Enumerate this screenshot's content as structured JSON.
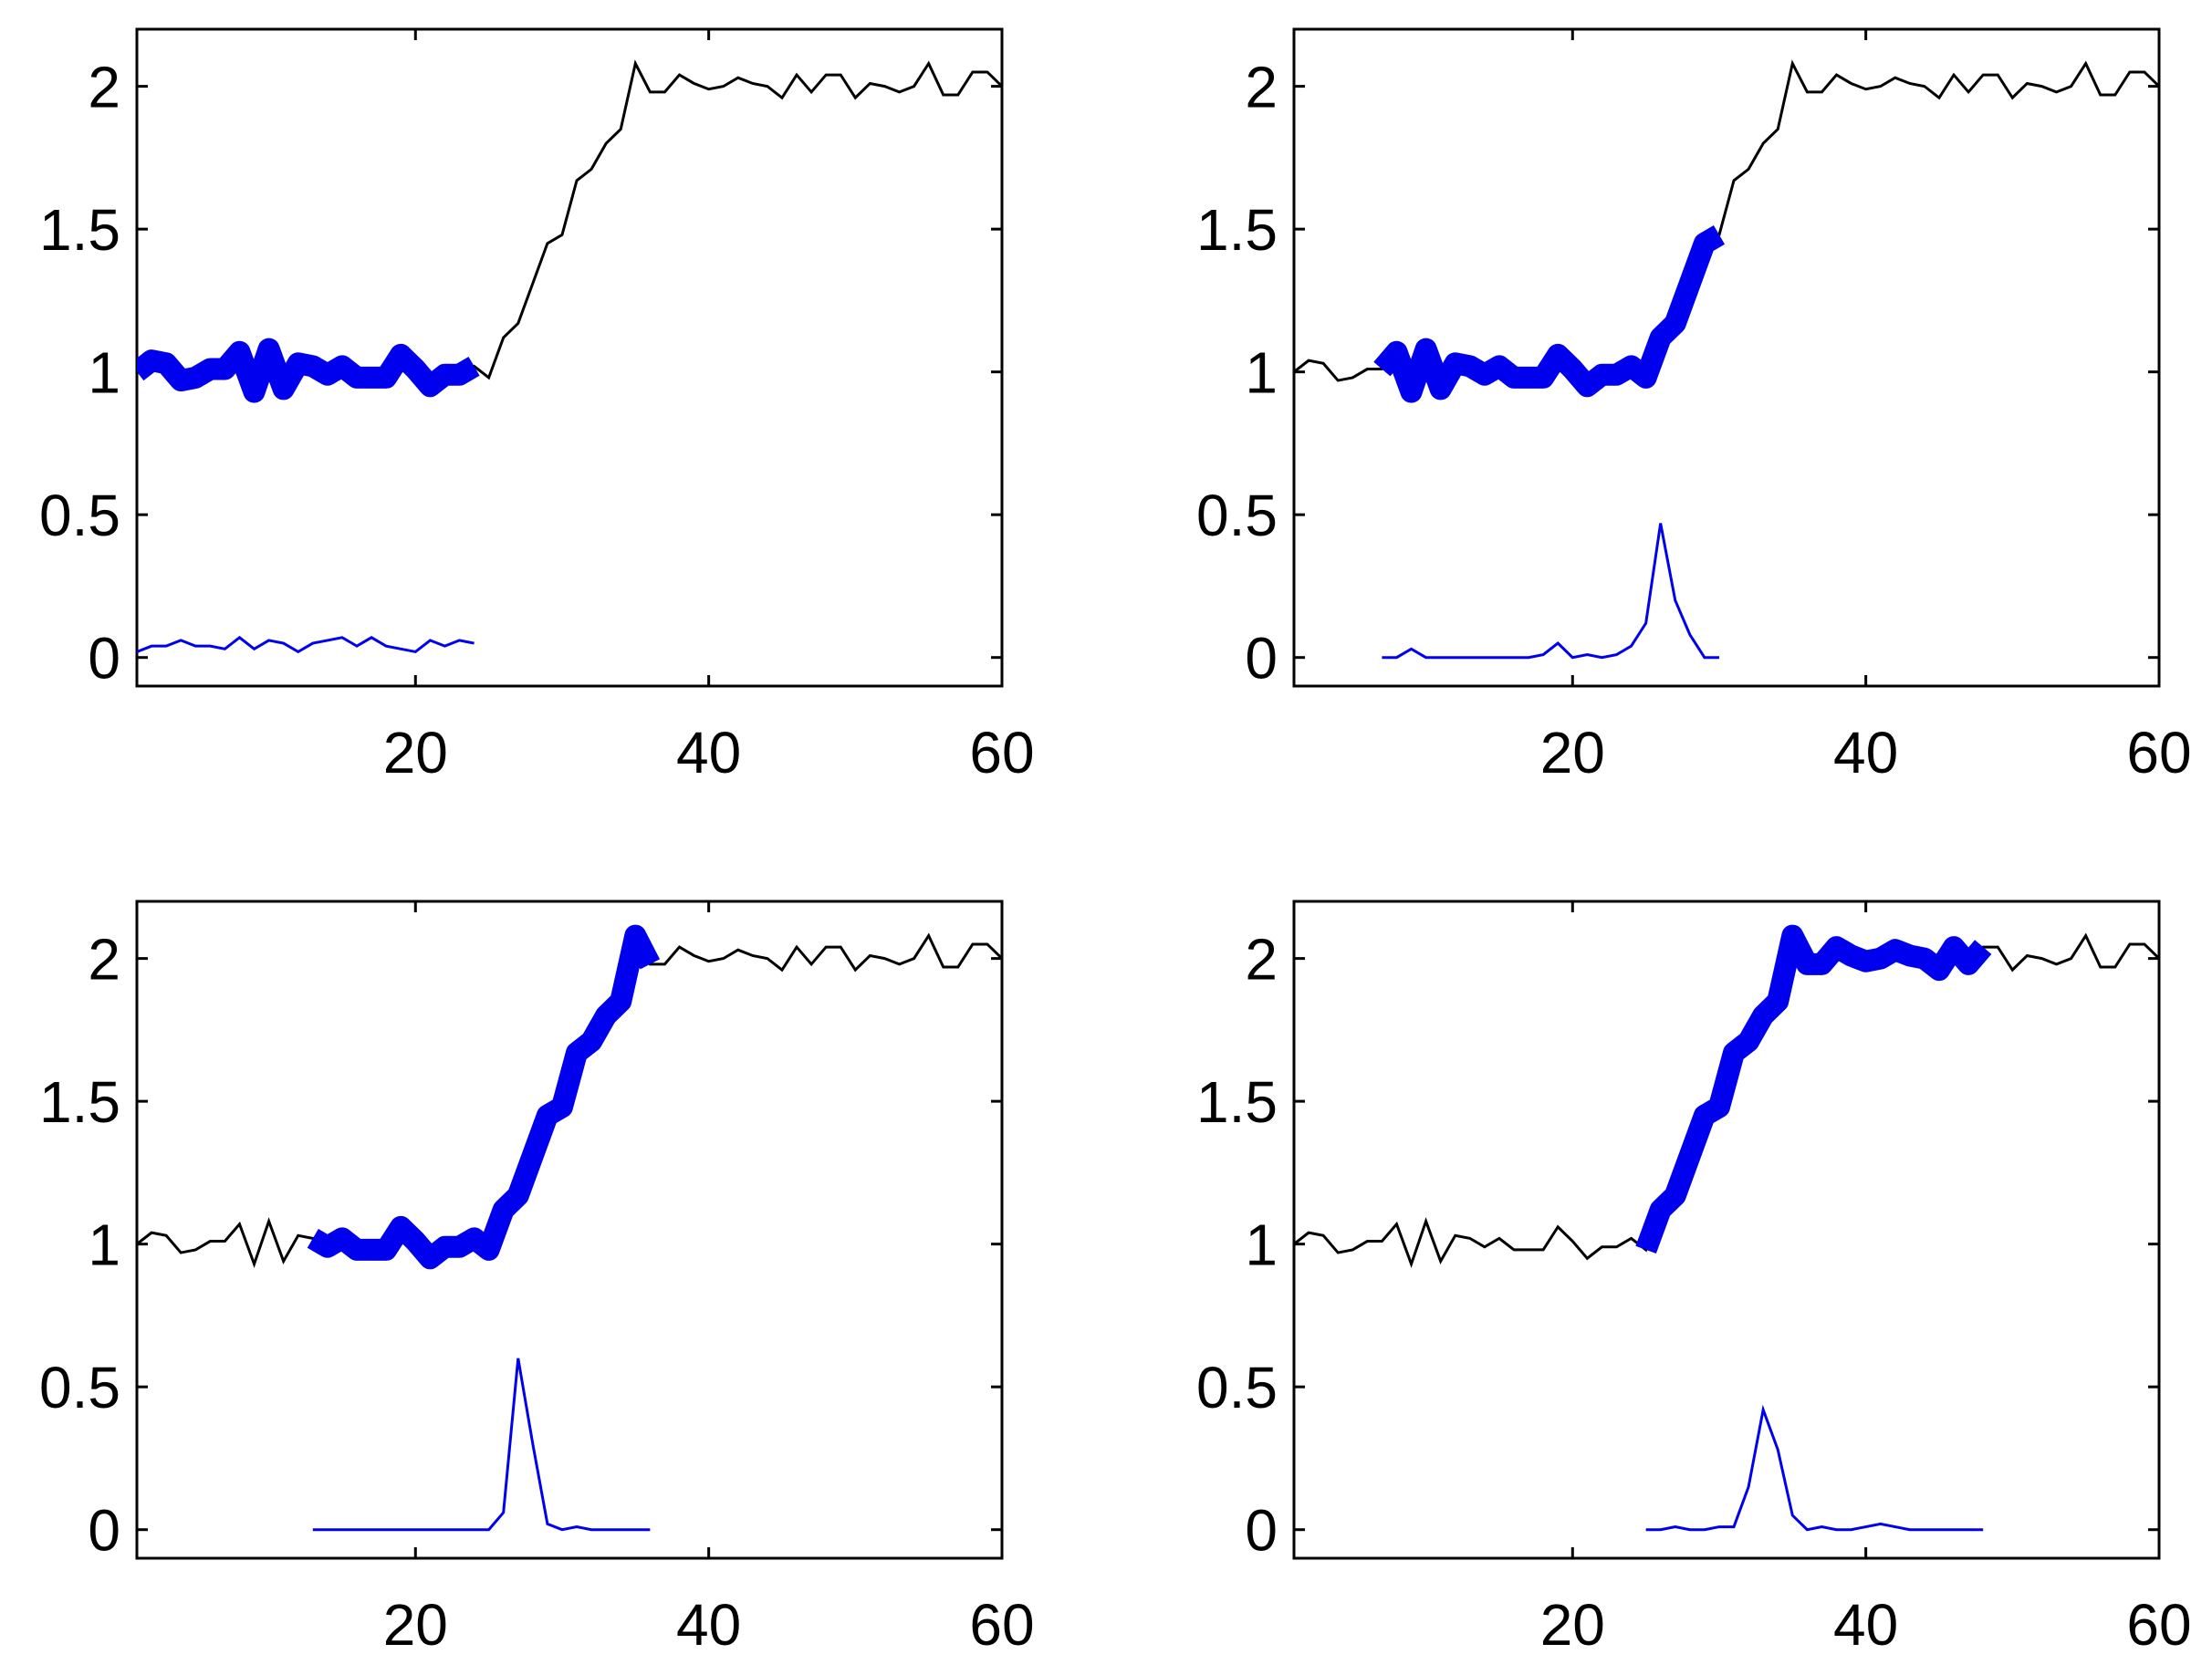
{
  "colors": {
    "signal": "#000000",
    "highlight": "#0000ee",
    "detector": "#0000ee",
    "axes": "#000000",
    "background": "#ffffff"
  },
  "chart_data": [
    {
      "type": "line",
      "title": "",
      "xlabel": "",
      "ylabel": "",
      "xlim": [
        1,
        60
      ],
      "ylim": [
        -0.1,
        2.2
      ],
      "xticks": [
        20,
        40,
        60
      ],
      "yticks": [
        0,
        0.5,
        1,
        1.5,
        2
      ],
      "xtick_labels": [
        "20",
        "40",
        "60"
      ],
      "ytick_labels": [
        "0",
        "0.5",
        "1",
        "1.5",
        "2"
      ],
      "grid": false,
      "highlight_range": [
        1,
        24
      ],
      "signal": {
        "x": [
          1,
          2,
          3,
          4,
          5,
          6,
          7,
          8,
          9,
          10,
          11,
          12,
          13,
          14,
          15,
          16,
          17,
          18,
          19,
          20,
          21,
          22,
          23,
          24,
          25,
          26,
          27,
          28,
          29,
          30,
          31,
          32,
          33,
          34,
          35,
          36,
          37,
          38,
          39,
          40,
          41,
          42,
          43,
          44,
          45,
          46,
          47,
          48,
          49,
          50,
          51,
          52,
          53,
          54,
          55,
          56,
          57,
          58,
          59,
          60
        ],
        "y": [
          1.0,
          1.04,
          1.03,
          0.97,
          0.98,
          1.01,
          1.01,
          1.07,
          0.93,
          1.08,
          0.94,
          1.03,
          1.02,
          0.99,
          1.02,
          0.98,
          0.98,
          0.98,
          1.06,
          1.01,
          0.95,
          0.99,
          0.99,
          1.02,
          0.98,
          1.12,
          1.17,
          1.31,
          1.45,
          1.48,
          1.67,
          1.71,
          1.8,
          1.85,
          2.08,
          1.98,
          1.98,
          2.04,
          2.01,
          1.99,
          2.0,
          2.03,
          2.01,
          2.0,
          1.96,
          2.04,
          1.98,
          2.04,
          2.04,
          1.96,
          2.01,
          2.0,
          1.98,
          2.0,
          2.08,
          1.97,
          1.97,
          2.05,
          2.05,
          2.0
        ]
      },
      "detector": {
        "x": [
          1,
          2,
          3,
          4,
          5,
          6,
          7,
          8,
          9,
          10,
          11,
          12,
          13,
          14,
          15,
          16,
          17,
          18,
          19,
          20,
          21,
          22,
          23,
          24
        ],
        "y": [
          0.02,
          0.04,
          0.04,
          0.06,
          0.04,
          0.04,
          0.03,
          0.07,
          0.03,
          0.06,
          0.05,
          0.02,
          0.05,
          0.06,
          0.07,
          0.04,
          0.07,
          0.04,
          0.03,
          0.02,
          0.06,
          0.04,
          0.06,
          0.05
        ]
      }
    },
    {
      "type": "line",
      "title": "",
      "xlabel": "",
      "ylabel": "",
      "xlim": [
        1,
        60
      ],
      "ylim": [
        -0.1,
        2.2
      ],
      "xticks": [
        20,
        40,
        60
      ],
      "yticks": [
        0,
        0.5,
        1,
        1.5,
        2
      ],
      "xtick_labels": [
        "20",
        "40",
        "60"
      ],
      "ytick_labels": [
        "0",
        "0.5",
        "1",
        "1.5",
        "2"
      ],
      "grid": false,
      "highlight_range": [
        7,
        30
      ],
      "signal": {
        "x": [
          1,
          2,
          3,
          4,
          5,
          6,
          7,
          8,
          9,
          10,
          11,
          12,
          13,
          14,
          15,
          16,
          17,
          18,
          19,
          20,
          21,
          22,
          23,
          24,
          25,
          26,
          27,
          28,
          29,
          30,
          31,
          32,
          33,
          34,
          35,
          36,
          37,
          38,
          39,
          40,
          41,
          42,
          43,
          44,
          45,
          46,
          47,
          48,
          49,
          50,
          51,
          52,
          53,
          54,
          55,
          56,
          57,
          58,
          59,
          60
        ],
        "y": [
          1.0,
          1.04,
          1.03,
          0.97,
          0.98,
          1.01,
          1.01,
          1.07,
          0.93,
          1.08,
          0.94,
          1.03,
          1.02,
          0.99,
          1.02,
          0.98,
          0.98,
          0.98,
          1.06,
          1.01,
          0.95,
          0.99,
          0.99,
          1.02,
          0.98,
          1.12,
          1.17,
          1.31,
          1.45,
          1.48,
          1.67,
          1.71,
          1.8,
          1.85,
          2.08,
          1.98,
          1.98,
          2.04,
          2.01,
          1.99,
          2.0,
          2.03,
          2.01,
          2.0,
          1.96,
          2.04,
          1.98,
          2.04,
          2.04,
          1.96,
          2.01,
          2.0,
          1.98,
          2.0,
          2.08,
          1.97,
          1.97,
          2.05,
          2.05,
          2.0
        ]
      },
      "detector": {
        "x": [
          7,
          8,
          9,
          10,
          11,
          12,
          13,
          14,
          15,
          16,
          17,
          18,
          19,
          20,
          21,
          22,
          23,
          24,
          25,
          26,
          27,
          28,
          29,
          30
        ],
        "y": [
          0.0,
          0.0,
          0.03,
          0.0,
          0.0,
          0.0,
          0.0,
          0.0,
          0.0,
          0.0,
          0.0,
          0.01,
          0.05,
          0.0,
          0.01,
          0.0,
          0.01,
          0.04,
          0.12,
          0.47,
          0.2,
          0.08,
          0.0,
          0.0
        ]
      }
    },
    {
      "type": "line",
      "title": "",
      "xlabel": "",
      "ylabel": "",
      "xlim": [
        1,
        60
      ],
      "ylim": [
        -0.1,
        2.2
      ],
      "xticks": [
        20,
        40,
        60
      ],
      "yticks": [
        0,
        0.5,
        1,
        1.5,
        2
      ],
      "xtick_labels": [
        "20",
        "40",
        "60"
      ],
      "ytick_labels": [
        "0",
        "0.5",
        "1",
        "1.5",
        "2"
      ],
      "grid": false,
      "highlight_range": [
        13,
        36
      ],
      "signal": {
        "x": [
          1,
          2,
          3,
          4,
          5,
          6,
          7,
          8,
          9,
          10,
          11,
          12,
          13,
          14,
          15,
          16,
          17,
          18,
          19,
          20,
          21,
          22,
          23,
          24,
          25,
          26,
          27,
          28,
          29,
          30,
          31,
          32,
          33,
          34,
          35,
          36,
          37,
          38,
          39,
          40,
          41,
          42,
          43,
          44,
          45,
          46,
          47,
          48,
          49,
          50,
          51,
          52,
          53,
          54,
          55,
          56,
          57,
          58,
          59,
          60
        ],
        "y": [
          1.0,
          1.04,
          1.03,
          0.97,
          0.98,
          1.01,
          1.01,
          1.07,
          0.93,
          1.08,
          0.94,
          1.03,
          1.02,
          0.99,
          1.02,
          0.98,
          0.98,
          0.98,
          1.06,
          1.01,
          0.95,
          0.99,
          0.99,
          1.02,
          0.98,
          1.12,
          1.17,
          1.31,
          1.45,
          1.48,
          1.67,
          1.71,
          1.8,
          1.85,
          2.08,
          1.98,
          1.98,
          2.04,
          2.01,
          1.99,
          2.0,
          2.03,
          2.01,
          2.0,
          1.96,
          2.04,
          1.98,
          2.04,
          2.04,
          1.96,
          2.01,
          2.0,
          1.98,
          2.0,
          2.08,
          1.97,
          1.97,
          2.05,
          2.05,
          2.0
        ]
      },
      "detector": {
        "x": [
          13,
          14,
          15,
          16,
          17,
          18,
          19,
          20,
          21,
          22,
          23,
          24,
          25,
          26,
          27,
          28,
          29,
          30,
          31,
          32,
          33,
          34,
          35,
          36
        ],
        "y": [
          0.0,
          0.0,
          0.0,
          0.0,
          0.0,
          0.0,
          0.0,
          0.0,
          0.0,
          0.0,
          0.0,
          0.0,
          0.0,
          0.06,
          0.6,
          0.3,
          0.02,
          0.0,
          0.01,
          0.0,
          0.0,
          0.0,
          0.0,
          0.0
        ]
      }
    },
    {
      "type": "line",
      "title": "",
      "xlabel": "",
      "ylabel": "",
      "xlim": [
        1,
        60
      ],
      "ylim": [
        -0.1,
        2.2
      ],
      "xticks": [
        20,
        40,
        60
      ],
      "yticks": [
        0,
        0.5,
        1,
        1.5,
        2
      ],
      "xtick_labels": [
        "20",
        "40",
        "60"
      ],
      "ytick_labels": [
        "0",
        "0.5",
        "1",
        "1.5",
        "2"
      ],
      "grid": false,
      "highlight_range": [
        25,
        48
      ],
      "signal": {
        "x": [
          1,
          2,
          3,
          4,
          5,
          6,
          7,
          8,
          9,
          10,
          11,
          12,
          13,
          14,
          15,
          16,
          17,
          18,
          19,
          20,
          21,
          22,
          23,
          24,
          25,
          26,
          27,
          28,
          29,
          30,
          31,
          32,
          33,
          34,
          35,
          36,
          37,
          38,
          39,
          40,
          41,
          42,
          43,
          44,
          45,
          46,
          47,
          48,
          49,
          50,
          51,
          52,
          53,
          54,
          55,
          56,
          57,
          58,
          59,
          60
        ],
        "y": [
          1.0,
          1.04,
          1.03,
          0.97,
          0.98,
          1.01,
          1.01,
          1.07,
          0.93,
          1.08,
          0.94,
          1.03,
          1.02,
          0.99,
          1.02,
          0.98,
          0.98,
          0.98,
          1.06,
          1.01,
          0.95,
          0.99,
          0.99,
          1.02,
          0.98,
          1.12,
          1.17,
          1.31,
          1.45,
          1.48,
          1.67,
          1.71,
          1.8,
          1.85,
          2.08,
          1.98,
          1.98,
          2.04,
          2.01,
          1.99,
          2.0,
          2.03,
          2.01,
          2.0,
          1.96,
          2.04,
          1.98,
          2.04,
          2.04,
          1.96,
          2.01,
          2.0,
          1.98,
          2.0,
          2.08,
          1.97,
          1.97,
          2.05,
          2.05,
          2.0
        ]
      },
      "detector": {
        "x": [
          25,
          26,
          27,
          28,
          29,
          30,
          31,
          32,
          33,
          34,
          35,
          36,
          37,
          38,
          39,
          40,
          41,
          42,
          43,
          44,
          45,
          46,
          47,
          48
        ],
        "y": [
          0.0,
          0.0,
          0.01,
          0.0,
          0.0,
          0.01,
          0.01,
          0.15,
          0.42,
          0.28,
          0.05,
          0.0,
          0.01,
          0.0,
          0.0,
          0.01,
          0.02,
          0.01,
          0.0,
          0.0,
          0.0,
          0.0,
          0.0,
          0.0
        ]
      }
    }
  ]
}
